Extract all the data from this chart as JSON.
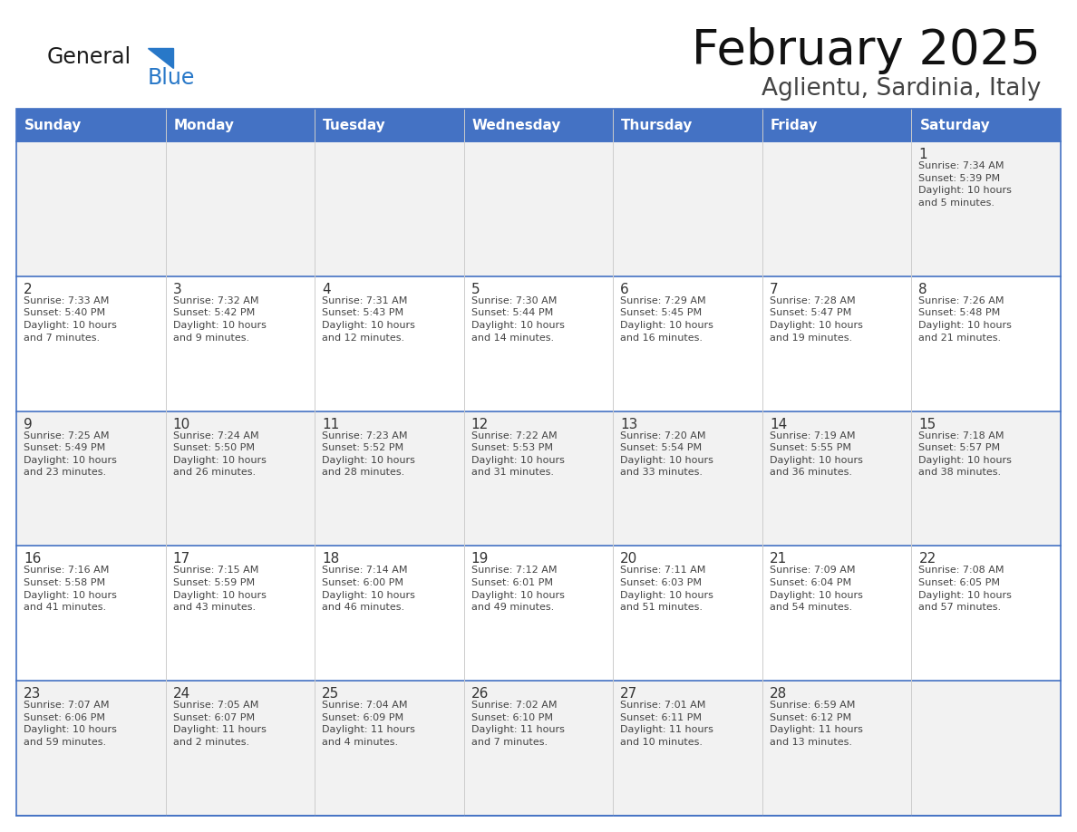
{
  "title": "February 2025",
  "subtitle": "Aglientu, Sardinia, Italy",
  "days_of_week": [
    "Sunday",
    "Monday",
    "Tuesday",
    "Wednesday",
    "Thursday",
    "Friday",
    "Saturday"
  ],
  "header_bg": "#4472C4",
  "header_text": "#FFFFFF",
  "cell_bg_white": "#FFFFFF",
  "cell_bg_gray": "#F2F2F2",
  "border_color": "#4472C4",
  "row_line_color": "#4472C4",
  "col_line_color": "#CCCCCC",
  "text_color": "#444444",
  "day_number_color": "#333333",
  "logo_general_color": "#1A1A1A",
  "logo_blue_color": "#2878C8",
  "logo_triangle_color": "#2878C8",
  "title_color": "#111111",
  "subtitle_color": "#444444",
  "weeks": [
    [
      {
        "day": null,
        "info": null
      },
      {
        "day": null,
        "info": null
      },
      {
        "day": null,
        "info": null
      },
      {
        "day": null,
        "info": null
      },
      {
        "day": null,
        "info": null
      },
      {
        "day": null,
        "info": null
      },
      {
        "day": 1,
        "info": "Sunrise: 7:34 AM\nSunset: 5:39 PM\nDaylight: 10 hours\nand 5 minutes."
      }
    ],
    [
      {
        "day": 2,
        "info": "Sunrise: 7:33 AM\nSunset: 5:40 PM\nDaylight: 10 hours\nand 7 minutes."
      },
      {
        "day": 3,
        "info": "Sunrise: 7:32 AM\nSunset: 5:42 PM\nDaylight: 10 hours\nand 9 minutes."
      },
      {
        "day": 4,
        "info": "Sunrise: 7:31 AM\nSunset: 5:43 PM\nDaylight: 10 hours\nand 12 minutes."
      },
      {
        "day": 5,
        "info": "Sunrise: 7:30 AM\nSunset: 5:44 PM\nDaylight: 10 hours\nand 14 minutes."
      },
      {
        "day": 6,
        "info": "Sunrise: 7:29 AM\nSunset: 5:45 PM\nDaylight: 10 hours\nand 16 minutes."
      },
      {
        "day": 7,
        "info": "Sunrise: 7:28 AM\nSunset: 5:47 PM\nDaylight: 10 hours\nand 19 minutes."
      },
      {
        "day": 8,
        "info": "Sunrise: 7:26 AM\nSunset: 5:48 PM\nDaylight: 10 hours\nand 21 minutes."
      }
    ],
    [
      {
        "day": 9,
        "info": "Sunrise: 7:25 AM\nSunset: 5:49 PM\nDaylight: 10 hours\nand 23 minutes."
      },
      {
        "day": 10,
        "info": "Sunrise: 7:24 AM\nSunset: 5:50 PM\nDaylight: 10 hours\nand 26 minutes."
      },
      {
        "day": 11,
        "info": "Sunrise: 7:23 AM\nSunset: 5:52 PM\nDaylight: 10 hours\nand 28 minutes."
      },
      {
        "day": 12,
        "info": "Sunrise: 7:22 AM\nSunset: 5:53 PM\nDaylight: 10 hours\nand 31 minutes."
      },
      {
        "day": 13,
        "info": "Sunrise: 7:20 AM\nSunset: 5:54 PM\nDaylight: 10 hours\nand 33 minutes."
      },
      {
        "day": 14,
        "info": "Sunrise: 7:19 AM\nSunset: 5:55 PM\nDaylight: 10 hours\nand 36 minutes."
      },
      {
        "day": 15,
        "info": "Sunrise: 7:18 AM\nSunset: 5:57 PM\nDaylight: 10 hours\nand 38 minutes."
      }
    ],
    [
      {
        "day": 16,
        "info": "Sunrise: 7:16 AM\nSunset: 5:58 PM\nDaylight: 10 hours\nand 41 minutes."
      },
      {
        "day": 17,
        "info": "Sunrise: 7:15 AM\nSunset: 5:59 PM\nDaylight: 10 hours\nand 43 minutes."
      },
      {
        "day": 18,
        "info": "Sunrise: 7:14 AM\nSunset: 6:00 PM\nDaylight: 10 hours\nand 46 minutes."
      },
      {
        "day": 19,
        "info": "Sunrise: 7:12 AM\nSunset: 6:01 PM\nDaylight: 10 hours\nand 49 minutes."
      },
      {
        "day": 20,
        "info": "Sunrise: 7:11 AM\nSunset: 6:03 PM\nDaylight: 10 hours\nand 51 minutes."
      },
      {
        "day": 21,
        "info": "Sunrise: 7:09 AM\nSunset: 6:04 PM\nDaylight: 10 hours\nand 54 minutes."
      },
      {
        "day": 22,
        "info": "Sunrise: 7:08 AM\nSunset: 6:05 PM\nDaylight: 10 hours\nand 57 minutes."
      }
    ],
    [
      {
        "day": 23,
        "info": "Sunrise: 7:07 AM\nSunset: 6:06 PM\nDaylight: 10 hours\nand 59 minutes."
      },
      {
        "day": 24,
        "info": "Sunrise: 7:05 AM\nSunset: 6:07 PM\nDaylight: 11 hours\nand 2 minutes."
      },
      {
        "day": 25,
        "info": "Sunrise: 7:04 AM\nSunset: 6:09 PM\nDaylight: 11 hours\nand 4 minutes."
      },
      {
        "day": 26,
        "info": "Sunrise: 7:02 AM\nSunset: 6:10 PM\nDaylight: 11 hours\nand 7 minutes."
      },
      {
        "day": 27,
        "info": "Sunrise: 7:01 AM\nSunset: 6:11 PM\nDaylight: 11 hours\nand 10 minutes."
      },
      {
        "day": 28,
        "info": "Sunrise: 6:59 AM\nSunset: 6:12 PM\nDaylight: 11 hours\nand 13 minutes."
      },
      {
        "day": null,
        "info": null
      }
    ]
  ]
}
